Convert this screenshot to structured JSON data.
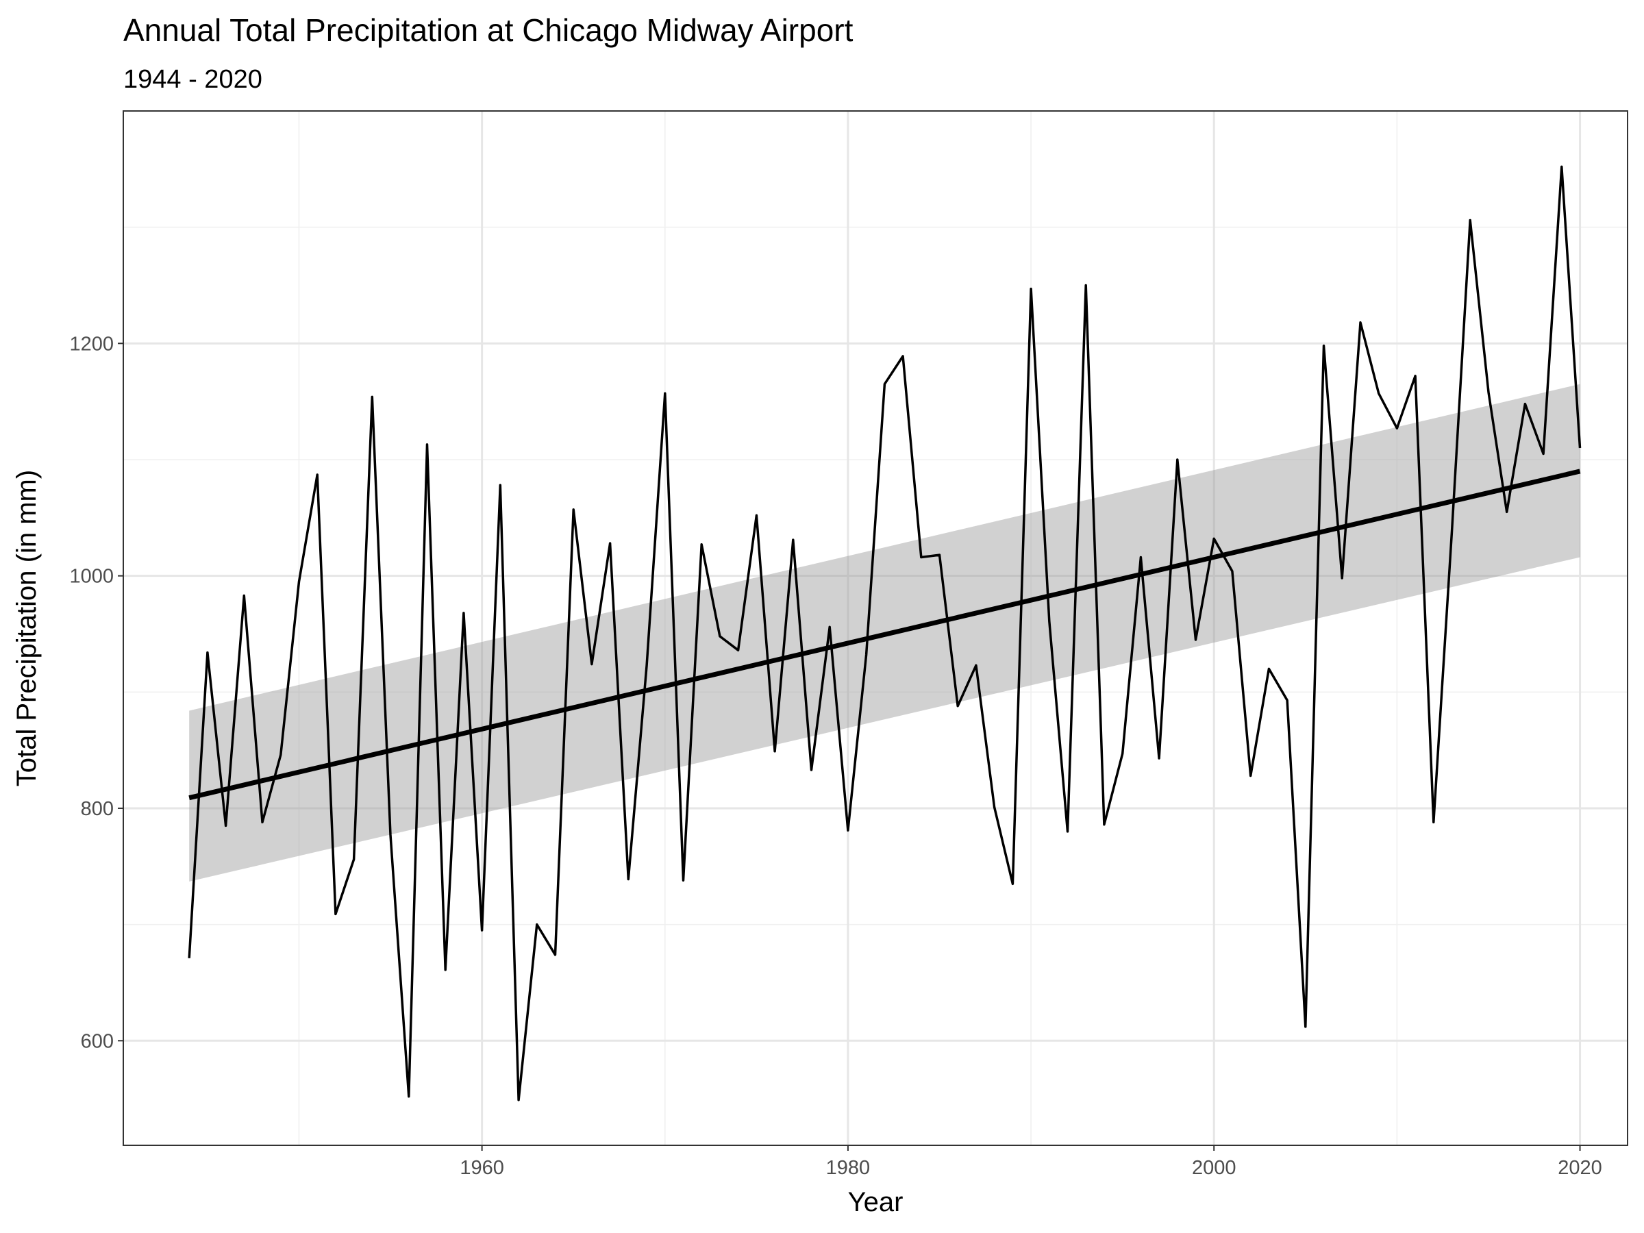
{
  "chart_data": {
    "type": "line",
    "title": "Annual Total Precipitation at Chicago Midway Airport",
    "subtitle": "1944 - 2020",
    "xlabel": "Year",
    "ylabel": "Total Precipitation (in mm)",
    "xlim": [
      1940.4,
      2022.6
    ],
    "ylim": [
      510,
      1400
    ],
    "x_ticks": [
      1960,
      1980,
      2000,
      2020
    ],
    "y_ticks": [
      600,
      800,
      1000,
      1200
    ],
    "grid": true,
    "series": [
      {
        "x": [
          1944,
          1945,
          1946,
          1947,
          1948,
          1949,
          1950,
          1951,
          1952,
          1953,
          1954,
          1955,
          1956,
          1957,
          1958,
          1959,
          1960,
          1961,
          1962,
          1963,
          1964,
          1965,
          1966,
          1967,
          1968,
          1969,
          1970,
          1971,
          1972,
          1973,
          1974,
          1975,
          1976,
          1977,
          1978,
          1979,
          1980,
          1981,
          1982,
          1983,
          1984,
          1985,
          1986,
          1987,
          1988,
          1989,
          1990,
          1991,
          1992,
          1993,
          1994,
          1995,
          1996,
          1997,
          1998,
          1999,
          2000,
          2001,
          2002,
          2003,
          2004,
          2005,
          2006,
          2007,
          2008,
          2009,
          2010,
          2011,
          2012,
          2013,
          2014,
          2015,
          2016,
          2017,
          2018,
          2019,
          2020
        ],
        "values": [
          671,
          934,
          785,
          983,
          788,
          846,
          995,
          1087,
          709,
          756,
          1154,
          777,
          552,
          1113,
          661,
          968,
          695,
          1078,
          549,
          700,
          674,
          1057,
          924,
          1028,
          739,
          923,
          1157,
          738,
          1027,
          948,
          936,
          1052,
          849,
          1031,
          833,
          956,
          781,
          932,
          1165,
          1189,
          1016,
          1018,
          888,
          923,
          801,
          735,
          1247,
          961,
          780,
          1250,
          786,
          847,
          1016,
          843,
          1100,
          945,
          1032,
          1004,
          828,
          920,
          893,
          612,
          1198,
          998,
          1218,
          1157,
          1127,
          1172,
          788,
          1038,
          1306,
          1158,
          1055,
          1148,
          1105,
          1352,
          1110
        ]
      }
    ],
    "trend": {
      "x": [
        1944,
        2020
      ],
      "fit": [
        809,
        1090
      ],
      "ci_lower": [
        737,
        1016
      ],
      "ci_upper": [
        884,
        1165
      ],
      "band_color": "#999999"
    }
  }
}
